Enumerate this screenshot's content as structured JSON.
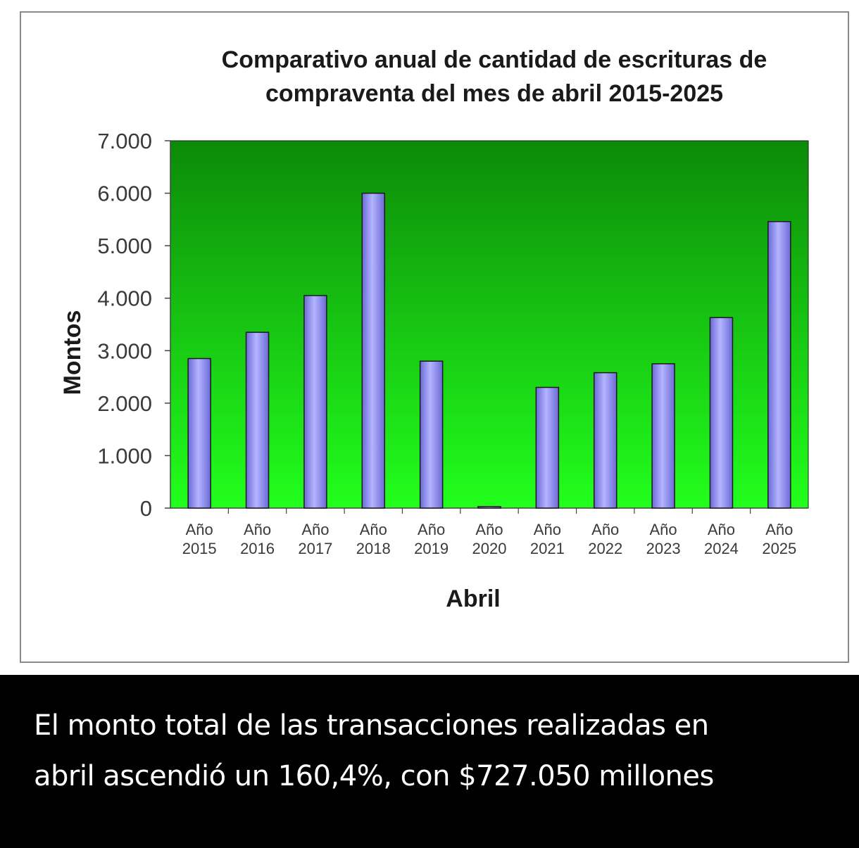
{
  "chart_data": {
    "type": "bar",
    "title_lines": [
      "Comparativo anual de cantidad de escrituras de",
      "compraventa del mes de abril 2015-2025"
    ],
    "xlabel": "Abril",
    "ylabel": "Montos",
    "ylim": [
      0,
      7000
    ],
    "yticks": [
      "0",
      "1.000",
      "2.000",
      "3.000",
      "4.000",
      "5.000",
      "6.000",
      "7.000"
    ],
    "categories": [
      [
        "Año",
        "2015"
      ],
      [
        "Año",
        "2016"
      ],
      [
        "Año",
        "2017"
      ],
      [
        "Año",
        "2018"
      ],
      [
        "Año",
        "2019"
      ],
      [
        "Año",
        "2020"
      ],
      [
        "Año",
        "2021"
      ],
      [
        "Año",
        "2022"
      ],
      [
        "Año",
        "2023"
      ],
      [
        "Año",
        "2024"
      ],
      [
        "Año",
        "2025"
      ]
    ],
    "values": [
      2850,
      3350,
      4050,
      6000,
      2800,
      30,
      2300,
      2580,
      2750,
      3630,
      5460
    ],
    "grid": false,
    "legend": "none",
    "colors": {
      "bar_fill_light": "#b4b4ff",
      "bar_fill_dark": "#6a6ad8",
      "bar_stroke": "#1a1a1a",
      "plot_bg_top": "#0c8a08",
      "plot_bg_bottom": "#22ff1c",
      "text": "#1a1a1a",
      "tick_text": "#3a3a3a"
    }
  },
  "caption": {
    "line1": "El monto total de las transacciones realizadas en",
    "line2": "abril ascendió un 160,4%, con $727.050 millones"
  }
}
